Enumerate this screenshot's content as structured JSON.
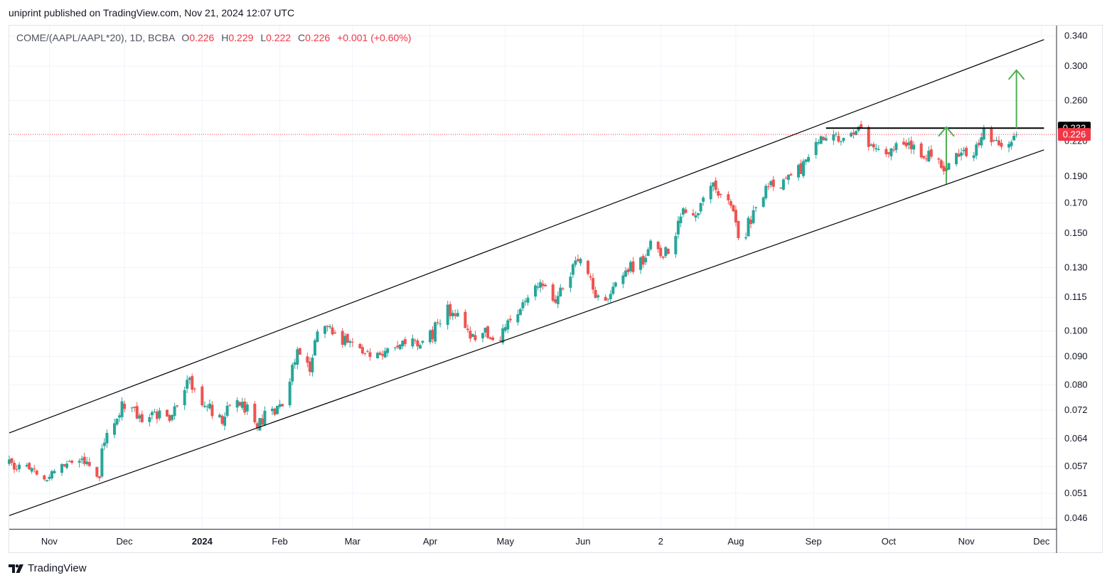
{
  "header": {
    "publisher_line": "uniprint published on TradingView.com, Nov 21, 2024 12:07 UTC"
  },
  "legend": {
    "symbol": "COME/(AAPL/AAPL*20), 1D, BCBA",
    "open_label": "O",
    "open": "0.226",
    "high_label": "H",
    "high": "0.229",
    "low_label": "L",
    "low": "0.222",
    "close_label": "C",
    "close": "0.226",
    "change": "+0.001 (+0.60%)"
  },
  "footer": {
    "brand": "TradingView",
    "logo_icon": "tradingview-logo-icon"
  },
  "chart_data": {
    "type": "candlestick",
    "scale": "log",
    "x_range": [
      "2023-10-16",
      "2024-12-07"
    ],
    "ylim": [
      0.044,
      0.355
    ],
    "x_tick_labels": [
      {
        "label": "Nov",
        "date": "2023-11-01"
      },
      {
        "label": "Dec",
        "date": "2023-12-01"
      },
      {
        "label": "2024",
        "date": "2024-01-01",
        "bold": true
      },
      {
        "label": "Feb",
        "date": "2024-02-01"
      },
      {
        "label": "Mar",
        "date": "2024-03-01"
      },
      {
        "label": "Apr",
        "date": "2024-04-01"
      },
      {
        "label": "May",
        "date": "2024-05-01"
      },
      {
        "label": "Jun",
        "date": "2024-06-01"
      },
      {
        "label": "2",
        "date": "2024-07-02"
      },
      {
        "label": "Aug",
        "date": "2024-08-01"
      },
      {
        "label": "Sep",
        "date": "2024-09-01"
      },
      {
        "label": "Oct",
        "date": "2024-10-01"
      },
      {
        "label": "Nov",
        "date": "2024-11-01"
      },
      {
        "label": "Dec",
        "date": "2024-12-01"
      }
    ],
    "y_tick_labels": [
      "0.340",
      "0.300",
      "0.260",
      "0.220",
      "0.190",
      "0.170",
      "0.150",
      "0.130",
      "0.115",
      "0.100",
      "0.090",
      "0.080",
      "0.072",
      "0.064",
      "0.057",
      "0.051",
      "0.046"
    ],
    "last_price": "0.226",
    "resistance_level": "0.232",
    "price_path": [
      [
        "2023-10-16",
        0.058
      ],
      [
        "2023-10-20",
        0.057
      ],
      [
        "2023-10-26",
        0.056
      ],
      [
        "2023-10-31",
        0.053
      ],
      [
        "2023-11-03",
        0.057
      ],
      [
        "2023-11-09",
        0.059
      ],
      [
        "2023-11-15",
        0.058
      ],
      [
        "2023-11-21",
        0.055
      ],
      [
        "2023-11-22",
        0.062
      ],
      [
        "2023-11-28",
        0.07
      ],
      [
        "2023-11-30",
        0.074
      ],
      [
        "2023-12-04",
        0.072
      ],
      [
        "2023-12-08",
        0.07
      ],
      [
        "2023-12-13",
        0.071
      ],
      [
        "2023-12-18",
        0.069
      ],
      [
        "2023-12-22",
        0.075
      ],
      [
        "2023-12-27",
        0.082
      ],
      [
        "2023-12-30",
        0.077
      ],
      [
        "2024-01-05",
        0.072
      ],
      [
        "2024-01-09",
        0.068
      ],
      [
        "2024-01-13",
        0.078
      ],
      [
        "2024-01-18",
        0.073
      ],
      [
        "2024-01-23",
        0.068
      ],
      [
        "2024-01-27",
        0.071
      ],
      [
        "2024-02-01",
        0.072
      ],
      [
        "2024-02-05",
        0.083
      ],
      [
        "2024-02-08",
        0.091
      ],
      [
        "2024-02-13",
        0.086
      ],
      [
        "2024-02-17",
        0.104
      ],
      [
        "2024-02-21",
        0.1
      ],
      [
        "2024-02-27",
        0.096
      ],
      [
        "2024-03-02",
        0.097
      ],
      [
        "2024-03-08",
        0.09
      ],
      [
        "2024-03-12",
        0.092
      ],
      [
        "2024-03-18",
        0.095
      ],
      [
        "2024-03-24",
        0.096
      ],
      [
        "2024-03-28",
        0.095
      ],
      [
        "2024-04-02",
        0.099
      ],
      [
        "2024-04-07",
        0.11
      ],
      [
        "2024-04-11",
        0.108
      ],
      [
        "2024-04-15",
        0.1
      ],
      [
        "2024-04-19",
        0.097
      ],
      [
        "2024-04-23",
        0.1
      ],
      [
        "2024-04-28",
        0.097
      ],
      [
        "2024-05-02",
        0.102
      ],
      [
        "2024-05-07",
        0.109
      ],
      [
        "2024-05-12",
        0.122
      ],
      [
        "2024-05-16",
        0.12
      ],
      [
        "2024-05-20",
        0.111
      ],
      [
        "2024-05-26",
        0.124
      ],
      [
        "2024-05-30",
        0.134
      ],
      [
        "2024-06-03",
        0.126
      ],
      [
        "2024-06-07",
        0.114
      ],
      [
        "2024-06-11",
        0.115
      ],
      [
        "2024-06-16",
        0.125
      ],
      [
        "2024-06-20",
        0.13
      ],
      [
        "2024-06-25",
        0.134
      ],
      [
        "2024-06-29",
        0.145
      ],
      [
        "2024-07-03",
        0.138
      ],
      [
        "2024-07-07",
        0.144
      ],
      [
        "2024-07-11",
        0.165
      ],
      [
        "2024-07-15",
        0.16
      ],
      [
        "2024-07-19",
        0.17
      ],
      [
        "2024-07-23",
        0.182
      ],
      [
        "2024-07-27",
        0.176
      ],
      [
        "2024-07-31",
        0.166
      ],
      [
        "2024-08-03",
        0.14
      ],
      [
        "2024-08-06",
        0.156
      ],
      [
        "2024-08-10",
        0.172
      ],
      [
        "2024-08-14",
        0.183
      ],
      [
        "2024-08-18",
        0.182
      ],
      [
        "2024-08-22",
        0.188
      ],
      [
        "2024-08-27",
        0.196
      ],
      [
        "2024-08-31",
        0.213
      ],
      [
        "2024-09-03",
        0.222
      ],
      [
        "2024-09-07",
        0.228
      ],
      [
        "2024-09-10",
        0.224
      ],
      [
        "2024-09-16",
        0.225
      ],
      [
        "2024-09-20",
        0.23
      ],
      [
        "2024-09-24",
        0.214
      ],
      [
        "2024-09-28",
        0.21
      ],
      [
        "2024-10-02",
        0.213
      ],
      [
        "2024-10-06",
        0.214
      ],
      [
        "2024-10-11",
        0.213
      ],
      [
        "2024-10-15",
        0.21
      ],
      [
        "2024-10-20",
        0.203
      ],
      [
        "2024-10-24",
        0.197
      ],
      [
        "2024-10-28",
        0.207
      ],
      [
        "2024-11-01",
        0.209
      ],
      [
        "2024-11-05",
        0.213
      ],
      [
        "2024-11-08",
        0.228
      ],
      [
        "2024-11-12",
        0.223
      ],
      [
        "2024-11-15",
        0.213
      ],
      [
        "2024-11-18",
        0.22
      ],
      [
        "2024-11-21",
        0.226
      ]
    ],
    "channel": {
      "upper": [
        [
          "2023-10-16",
          0.0655
        ],
        [
          "2024-12-02",
          0.335
        ]
      ],
      "lower": [
        [
          "2023-10-16",
          0.0465
        ],
        [
          "2024-12-02",
          0.212
        ]
      ]
    },
    "horizontal_line": {
      "from": "2024-09-06",
      "to": "2024-12-02",
      "price": 0.232
    },
    "arrows": [
      {
        "date": "2024-10-24",
        "from": 0.184,
        "to": 0.233
      },
      {
        "date": "2024-11-21",
        "from": 0.232,
        "to": 0.295
      }
    ],
    "colors": {
      "up": "#26a69a",
      "down": "#ef5350",
      "channel": "#000000",
      "arrows": "#4caf50",
      "grid": "#f0f3fa",
      "last_price": "#f23645",
      "level": "#000000"
    }
  }
}
